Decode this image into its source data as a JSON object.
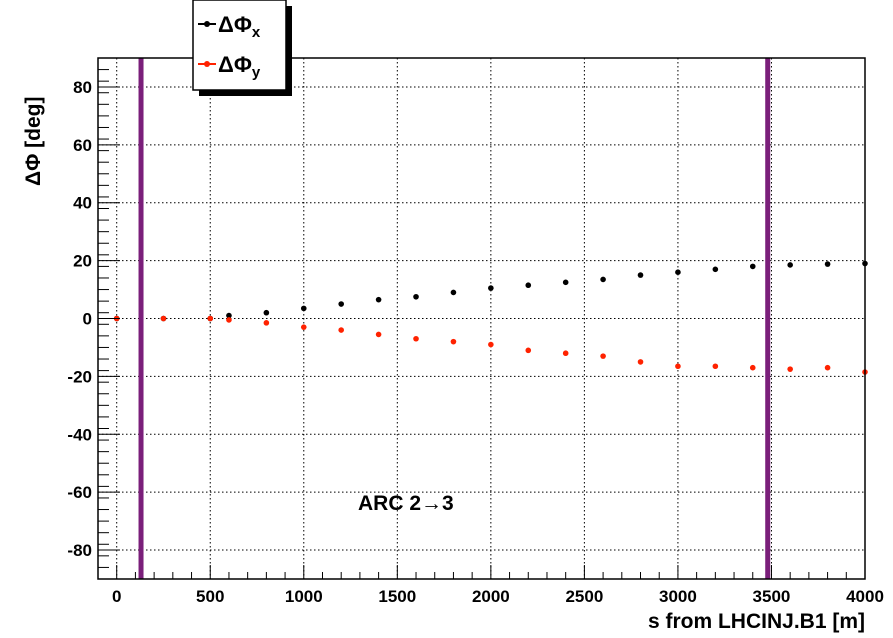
{
  "chart_data": {
    "type": "scatter",
    "xlabel": "s from LHCINJ.B1 [m]",
    "ylabel": "ΔΦ [deg]",
    "xlim": [
      -100,
      4000
    ],
    "ylim": [
      -90,
      90
    ],
    "x_ticks": [
      0,
      500,
      1000,
      1500,
      2000,
      2500,
      3000,
      3500,
      4000
    ],
    "y_ticks": [
      -80,
      -60,
      -40,
      -20,
      0,
      20,
      40,
      60,
      80
    ],
    "grid": true,
    "legend_position": "top-left",
    "legend": [
      {
        "main": "ΔΦ",
        "sub": "x",
        "color": "#000000"
      },
      {
        "main": "ΔΦ",
        "sub": "y",
        "color": "#ff2200"
      }
    ],
    "annotation": "ARC 2→3",
    "vertical_markers": [
      {
        "x": 130,
        "color": "#7a1f7a"
      },
      {
        "x": 3480,
        "color": "#7a1f7a"
      }
    ],
    "series": [
      {
        "color": "#000000",
        "x": [
          0,
          250,
          500,
          600,
          800,
          1000,
          1200,
          1400,
          1600,
          1800,
          2000,
          2200,
          2400,
          2600,
          2800,
          3000,
          3200,
          3400,
          3600,
          3800,
          4000
        ],
        "values": [
          0,
          0,
          0,
          1,
          2,
          3.5,
          5,
          6.5,
          7.5,
          9,
          10.5,
          11.5,
          12.5,
          13.5,
          15,
          16,
          17,
          18,
          18.5,
          18.8,
          19
        ]
      },
      {
        "color": "#ff2200",
        "x": [
          0,
          250,
          500,
          600,
          800,
          1000,
          1200,
          1400,
          1600,
          1800,
          2000,
          2200,
          2400,
          2600,
          2800,
          3000,
          3200,
          3400,
          3600,
          3800,
          4000
        ],
        "values": [
          0,
          0,
          0,
          -0.5,
          -1.5,
          -3,
          -4,
          -5.5,
          -7,
          -8,
          -9,
          -11,
          -12,
          -13,
          -15,
          -16.5,
          -16.5,
          -17,
          -17.5,
          -17,
          -18.5
        ]
      }
    ]
  }
}
